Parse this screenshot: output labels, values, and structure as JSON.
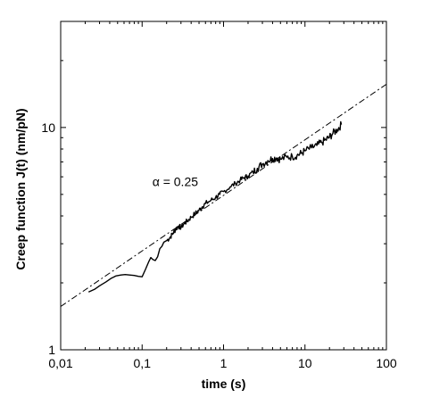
{
  "chart_data": {
    "type": "line",
    "title": "",
    "xlabel": "time (s)",
    "ylabel": "Creep function J(t) (nm/pN)",
    "xscale": "log",
    "yscale": "log",
    "xlim": [
      0.01,
      100
    ],
    "ylim": [
      1,
      30
    ],
    "grid": false,
    "x_ticks": [
      {
        "value": 0.01,
        "label": "0,01"
      },
      {
        "value": 0.1,
        "label": "0,1"
      },
      {
        "value": 1,
        "label": "1"
      },
      {
        "value": 10,
        "label": "10"
      },
      {
        "value": 100,
        "label": "100"
      }
    ],
    "y_ticks": [
      {
        "value": 1,
        "label": "1"
      },
      {
        "value": 10,
        "label": "10"
      }
    ],
    "series": [
      {
        "style": "solid",
        "color": "#000000",
        "x": [
          0.022,
          0.026,
          0.03,
          0.036,
          0.042,
          0.048,
          0.055,
          0.062,
          0.07,
          0.08,
          0.09,
          0.1,
          0.11,
          0.12,
          0.128,
          0.135,
          0.145,
          0.155,
          0.165,
          0.175,
          0.185,
          0.2,
          0.22,
          0.24,
          0.26,
          0.28,
          0.3,
          0.33,
          0.36,
          0.4,
          0.45,
          0.5,
          0.55,
          0.6,
          0.7,
          0.8,
          0.9,
          1.0,
          1.2,
          1.4,
          1.6,
          1.8,
          2.0,
          2.3,
          2.6,
          3.0,
          3.5,
          4.0,
          4.5,
          5.0,
          6.0,
          7.0,
          8.0,
          9.0,
          10.0,
          12.0,
          14.0,
          16.0,
          18.0,
          20.0,
          22.0,
          25.0,
          28.0
        ],
        "y": [
          1.82,
          1.87,
          1.94,
          2.02,
          2.1,
          2.15,
          2.17,
          2.18,
          2.17,
          2.16,
          2.14,
          2.13,
          2.3,
          2.48,
          2.6,
          2.55,
          2.52,
          2.62,
          2.85,
          2.92,
          3.05,
          3.1,
          3.2,
          3.35,
          3.5,
          3.6,
          3.55,
          3.7,
          3.8,
          3.95,
          4.1,
          4.25,
          4.4,
          4.55,
          4.7,
          4.85,
          5.0,
          5.15,
          5.4,
          5.6,
          5.8,
          5.95,
          6.05,
          6.3,
          6.55,
          6.85,
          7.1,
          7.25,
          7.3,
          7.2,
          7.35,
          7.4,
          7.5,
          7.65,
          7.85,
          8.1,
          8.3,
          8.55,
          8.8,
          9.05,
          9.4,
          9.8,
          10.3
        ]
      },
      {
        "style": "dash-dot",
        "color": "#000000",
        "fit": {
          "exponent": 0.25,
          "x_at_prefactor": 1,
          "prefactor": 4.95
        },
        "x": [
          0.01,
          100
        ]
      }
    ],
    "annotations": [
      {
        "text": "α = 0.25",
        "x": 0.2,
        "y": 5.7
      }
    ]
  }
}
